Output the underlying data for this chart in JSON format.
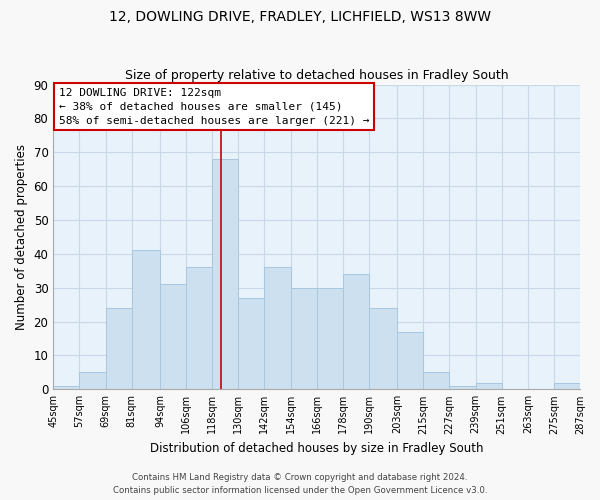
{
  "title": "12, DOWLING DRIVE, FRADLEY, LICHFIELD, WS13 8WW",
  "subtitle": "Size of property relative to detached houses in Fradley South",
  "xlabel": "Distribution of detached houses by size in Fradley South",
  "ylabel": "Number of detached properties",
  "bar_color": "#cce0f0",
  "bar_edgecolor": "#a8c8e0",
  "background_color": "#e8f2fa",
  "grid_color": "#c8d8e8",
  "bin_edges": [
    45,
    57,
    69,
    81,
    94,
    106,
    118,
    130,
    142,
    154,
    166,
    178,
    190,
    203,
    215,
    227,
    239,
    251,
    263,
    275,
    287
  ],
  "bin_labels": [
    "45sqm",
    "57sqm",
    "69sqm",
    "81sqm",
    "94sqm",
    "106sqm",
    "118sqm",
    "130sqm",
    "142sqm",
    "154sqm",
    "166sqm",
    "178sqm",
    "190sqm",
    "203sqm",
    "215sqm",
    "227sqm",
    "239sqm",
    "251sqm",
    "263sqm",
    "275sqm",
    "287sqm"
  ],
  "counts": [
    1,
    5,
    24,
    41,
    31,
    36,
    68,
    27,
    36,
    30,
    30,
    34,
    24,
    17,
    5,
    1,
    2,
    0,
    0,
    2
  ],
  "vline_x": 122,
  "vline_color": "#cc0000",
  "ylim": [
    0,
    90
  ],
  "yticks": [
    0,
    10,
    20,
    30,
    40,
    50,
    60,
    70,
    80,
    90
  ],
  "annotation_line1": "12 DOWLING DRIVE: 122sqm",
  "annotation_line2": "← 38% of detached houses are smaller (145)",
  "annotation_line3": "58% of semi-detached houses are larger (221) →",
  "annotation_box_color": "#ffffff",
  "annotation_border_color": "#cc0000",
  "footer_line1": "Contains HM Land Registry data © Crown copyright and database right 2024.",
  "footer_line2": "Contains public sector information licensed under the Open Government Licence v3.0.",
  "fig_facecolor": "#f8f8f8"
}
